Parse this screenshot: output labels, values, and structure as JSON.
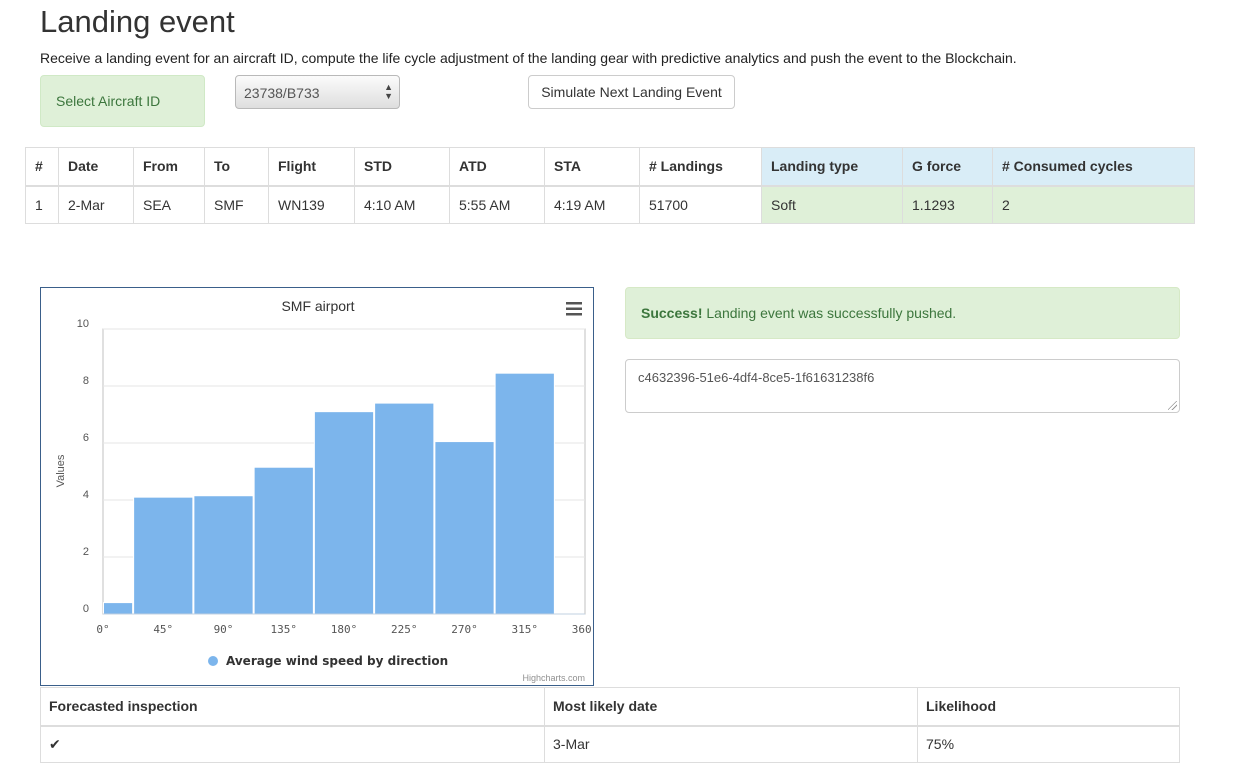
{
  "page": {
    "title": "Landing event",
    "description": "Receive a landing event for an aircraft ID, compute the life cycle adjustment of the landing gear with predictive analytics and push the event to the Blockchain."
  },
  "controls": {
    "aircraft_label": "Select Aircraft ID",
    "aircraft_selected": "23738/B733",
    "simulate_label": "Simulate Next Landing Event"
  },
  "landing_table": {
    "headers": [
      "#",
      "Date",
      "From",
      "To",
      "Flight",
      "STD",
      "ATD",
      "STA",
      "# Landings",
      "Landing type",
      "G force",
      "# Consumed cycles"
    ],
    "rows": [
      [
        "1",
        "2-Mar",
        "SEA",
        "SMF",
        "WN139",
        "4:10 AM",
        "5:55 AM",
        "4:19 AM",
        "51700",
        "Soft",
        "1.1293",
        "2"
      ]
    ]
  },
  "alert": {
    "strong": "Success!",
    "message": " Landing event was successfully pushed."
  },
  "transaction_id": "c4632396-51e6-4df4-8ce5-1f61631238f6",
  "inspection_table": {
    "headers": [
      "Forecasted inspection",
      "Most likely date",
      "Likelihood"
    ],
    "rows": [
      [
        "✔",
        "3-Mar",
        "75%"
      ]
    ]
  },
  "chart_data": {
    "type": "bar",
    "title": "SMF airport",
    "xlabel": "",
    "ylabel": "Values",
    "xlim": [
      0,
      360
    ],
    "ylim": [
      0,
      10
    ],
    "xticks": [
      "0°",
      "45°",
      "90°",
      "135°",
      "180°",
      "225°",
      "270°",
      "315°",
      "360°"
    ],
    "yticks": [
      "0",
      "2",
      "4",
      "6",
      "8",
      "10"
    ],
    "grid": true,
    "series": [
      {
        "name": "Average wind speed by direction",
        "color": "#7cb5ec",
        "bins": [
          {
            "from": 0,
            "to": 22.5,
            "value": 0.4
          },
          {
            "from": 22.5,
            "to": 67.5,
            "value": 4.1
          },
          {
            "from": 67.5,
            "to": 112.5,
            "value": 4.15
          },
          {
            "from": 112.5,
            "to": 157.5,
            "value": 5.15
          },
          {
            "from": 157.5,
            "to": 202.5,
            "value": 7.1
          },
          {
            "from": 202.5,
            "to": 247.5,
            "value": 7.4
          },
          {
            "from": 247.5,
            "to": 292.5,
            "value": 6.05
          },
          {
            "from": 292.5,
            "to": 337.5,
            "value": 8.45
          }
        ]
      }
    ],
    "legend": "bottom-center",
    "credits": "Highcharts.com",
    "menu_icon": "hamburger-icon"
  }
}
